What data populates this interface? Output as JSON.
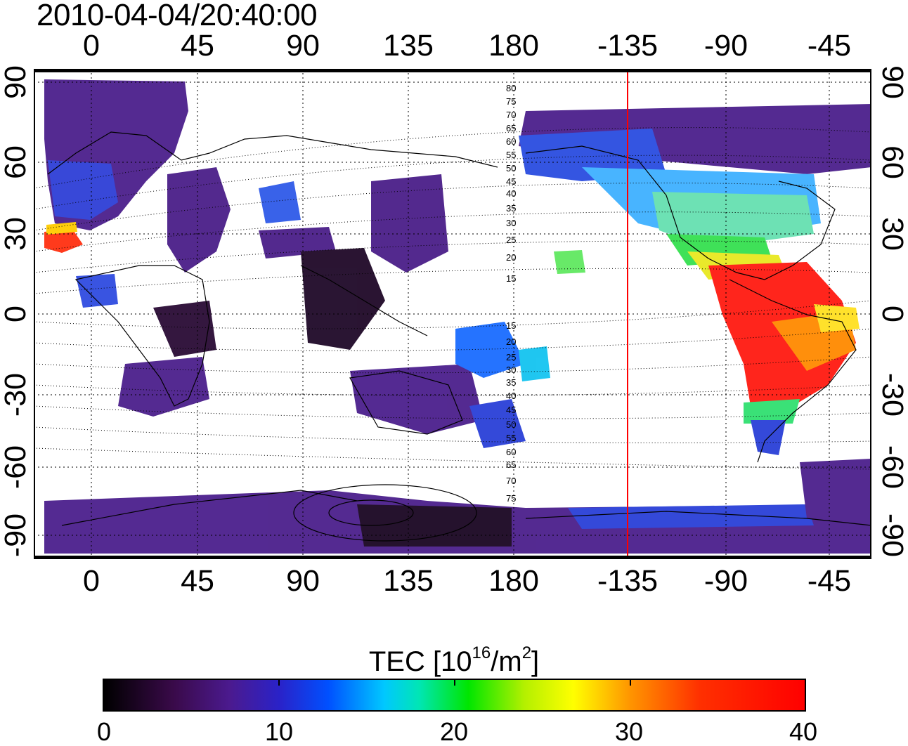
{
  "header": {
    "timestamp": "2010-04-04/20:40:00"
  },
  "map": {
    "lon_ticks": [
      "0",
      "45",
      "90",
      "135",
      "180",
      "-135",
      "-90",
      "-45"
    ],
    "lat_ticks": [
      "90",
      "60",
      "30",
      "0",
      "-30",
      "-60",
      "-90"
    ],
    "grid": true,
    "red_meridian_lon": -135,
    "contour_labels_north": [
      "80",
      "75",
      "70",
      "65",
      "60",
      "55",
      "50",
      "45",
      "40",
      "35",
      "30",
      "25",
      "20",
      "15"
    ],
    "contour_labels_south": [
      "15",
      "20",
      "25",
      "30",
      "35",
      "40",
      "45",
      "50",
      "55",
      "60",
      "65",
      "70",
      "75"
    ]
  },
  "colorbar": {
    "title_prefix": "TEC  [10",
    "title_exp1": "16",
    "title_mid": "/m",
    "title_exp2": "2",
    "title_suffix": "]",
    "ticks": [
      "0",
      "10",
      "20",
      "30",
      "40"
    ],
    "range": [
      0,
      40
    ],
    "colors": [
      "#000000",
      "#4b1a8f",
      "#0050ff",
      "#00e6b4",
      "#00e600",
      "#ffff00",
      "#ff9600",
      "#ff0000"
    ]
  }
}
